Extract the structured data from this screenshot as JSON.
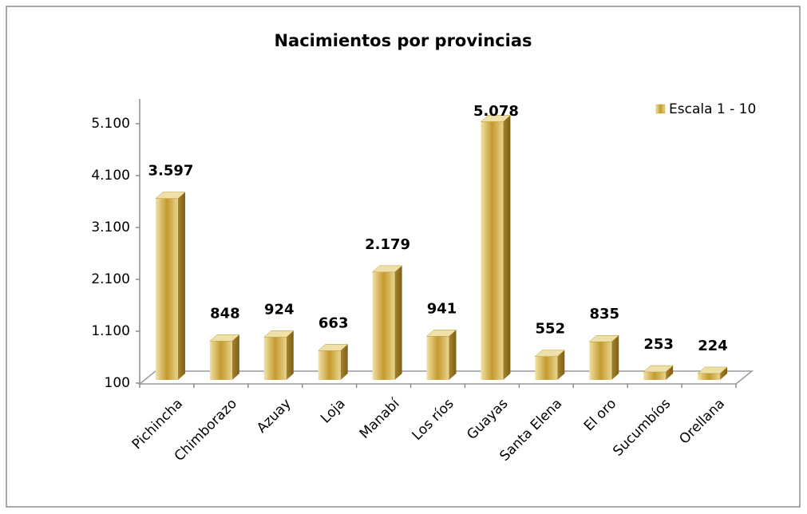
{
  "chart_data": {
    "type": "bar",
    "title": "Nacimientos por provincias",
    "categories": [
      "Pichincha",
      "Chimborazo",
      "Azuay",
      "Loja",
      "Manabí",
      "Los ríos",
      "Guayas",
      "Santa Elena",
      "El oro",
      "Sucumbíos",
      "Orellana"
    ],
    "series": [
      {
        "name": "Escala 1 - 10",
        "color": "#c9a23a",
        "values": [
          3597,
          848,
          924,
          663,
          2179,
          941,
          5078,
          552,
          835,
          253,
          224
        ],
        "value_labels": [
          "3.597",
          "848",
          "924",
          "663",
          "2.179",
          "941",
          "5.078",
          "552",
          "835",
          "253",
          "224"
        ]
      }
    ],
    "ylim": [
      100,
      5100
    ],
    "yticks": [
      100,
      {
        "value": 1100,
        "label": "1.100"
      },
      {
        "value": 2100,
        "label": "2.100"
      },
      {
        "value": 3100,
        "label": "3.100"
      },
      {
        "value": 4100,
        "label": "4.100"
      },
      {
        "value": 5100,
        "label": "5.100"
      }
    ],
    "grid": false,
    "legend": "top-right"
  }
}
